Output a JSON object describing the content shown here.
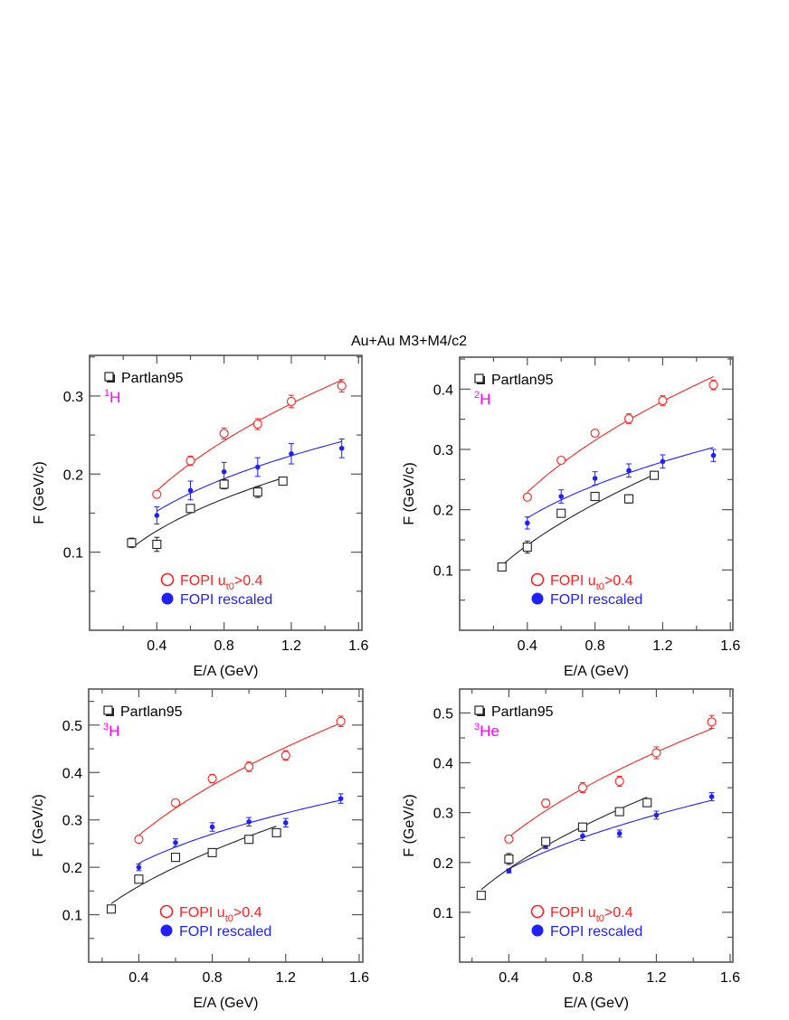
{
  "figure_title": "Au+Au M3+M4/c2",
  "colors": {
    "red": "#ff2020",
    "blue": "#2020ff",
    "black": "#222222",
    "magenta": "#ff00ff",
    "frame": "#555555"
  },
  "legend": {
    "partlan": "Partlan95",
    "fopi_prefix": "FOPI u",
    "fopi_sub": "t0",
    "fopi_suffix": ">0.4",
    "rescaled": "FOPI rescaled"
  },
  "chart_data": [
    {
      "type": "scatter",
      "title": "",
      "isotope_mass": "1",
      "isotope_symbol": "H",
      "xlabel": "E/A (GeV)",
      "ylabel": "F (GeV/c)",
      "xlim": [
        0,
        1.62
      ],
      "ylim": [
        0,
        0.352
      ],
      "xticks": [
        0.4,
        0.8,
        1.2,
        1.6
      ],
      "yticks": [
        0.1,
        0.2,
        0.3
      ],
      "xtick_labels": [
        "0.4",
        "0.8",
        "1.2",
        "1.6"
      ],
      "ytick_labels": [
        "0.1",
        "0.2",
        "0.3"
      ],
      "series": [
        {
          "name": "FOPI ut0>0.4",
          "color": "red",
          "marker": "open-circle",
          "x": [
            0.4,
            0.6,
            0.8,
            1.0,
            1.2,
            1.5
          ],
          "y": [
            0.174,
            0.217,
            0.252,
            0.264,
            0.293,
            0.313
          ],
          "err": [
            0.003,
            0.006,
            0.007,
            0.007,
            0.008,
            0.008
          ]
        },
        {
          "name": "FOPI rescaled",
          "color": "blue",
          "marker": "filled-circle",
          "x": [
            0.4,
            0.6,
            0.8,
            1.0,
            1.2,
            1.5
          ],
          "y": [
            0.147,
            0.179,
            0.203,
            0.209,
            0.226,
            0.233
          ],
          "err": [
            0.011,
            0.012,
            0.012,
            0.012,
            0.013,
            0.012
          ]
        },
        {
          "name": "Partlan95",
          "color": "black",
          "marker": "open-square",
          "x": [
            0.25,
            0.4,
            0.6,
            0.8,
            1.0,
            1.15
          ],
          "y": [
            0.112,
            0.11,
            0.156,
            0.187,
            0.177,
            0.191
          ],
          "err": [
            0.006,
            0.009,
            0.003,
            0.006,
            0.007,
            0.003
          ]
        }
      ]
    },
    {
      "type": "scatter",
      "title": "",
      "isotope_mass": "2",
      "isotope_symbol": "H",
      "xlabel": "E/A (GeV)",
      "ylabel": "F (GeV/c)",
      "xlim": [
        0,
        1.615
      ],
      "ylim": [
        0,
        0.453
      ],
      "xticks": [
        0.4,
        0.8,
        1.2,
        1.6
      ],
      "yticks": [
        0.1,
        0.2,
        0.3,
        0.4
      ],
      "xtick_labels": [
        "0.4",
        "0.8",
        "1.2",
        "1.6"
      ],
      "ytick_labels": [
        "0.1",
        "0.2",
        "0.3",
        "0.4"
      ],
      "series": [
        {
          "name": "FOPI ut0>0.4",
          "color": "red",
          "marker": "open-circle",
          "x": [
            0.4,
            0.6,
            0.8,
            1.0,
            1.2,
            1.5
          ],
          "y": [
            0.221,
            0.282,
            0.327,
            0.351,
            0.381,
            0.407
          ],
          "err": [
            0.003,
            0.004,
            0.004,
            0.008,
            0.008,
            0.008
          ]
        },
        {
          "name": "FOPI rescaled",
          "color": "blue",
          "marker": "filled-circle",
          "x": [
            0.4,
            0.6,
            0.8,
            1.0,
            1.2,
            1.5
          ],
          "y": [
            0.178,
            0.222,
            0.252,
            0.265,
            0.28,
            0.29
          ],
          "err": [
            0.01,
            0.011,
            0.011,
            0.011,
            0.011,
            0.01
          ]
        },
        {
          "name": "Partlan95",
          "color": "black",
          "marker": "open-square",
          "x": [
            0.25,
            0.4,
            0.6,
            0.8,
            1.0,
            1.15
          ],
          "y": [
            0.105,
            0.138,
            0.194,
            0.222,
            0.218,
            0.257
          ],
          "err": [
            0.003,
            0.01,
            0.004,
            0.004,
            0.007,
            0.003
          ]
        }
      ]
    },
    {
      "type": "scatter",
      "title": "",
      "isotope_mass": "3",
      "isotope_symbol": "H",
      "xlabel": "E/A (GeV)",
      "ylabel": "F (GeV/c)",
      "xlim": [
        0.127,
        1.62
      ],
      "ylim": [
        0,
        0.576
      ],
      "xticks": [
        0.4,
        0.8,
        1.2,
        1.6
      ],
      "yticks": [
        0.1,
        0.2,
        0.3,
        0.4,
        0.5
      ],
      "xtick_labels": [
        "0.4",
        "0.8",
        "1.2",
        "1.6"
      ],
      "ytick_labels": [
        "0.1",
        "0.2",
        "0.3",
        "0.4",
        "0.5"
      ],
      "series": [
        {
          "name": "FOPI ut0>0.4",
          "color": "red",
          "marker": "open-circle",
          "x": [
            0.4,
            0.6,
            0.8,
            1.0,
            1.2,
            1.5
          ],
          "y": [
            0.259,
            0.336,
            0.387,
            0.412,
            0.436,
            0.508
          ],
          "err": [
            0.003,
            0.007,
            0.009,
            0.01,
            0.01,
            0.011
          ]
        },
        {
          "name": "FOPI rescaled",
          "color": "blue",
          "marker": "filled-circle",
          "x": [
            0.4,
            0.6,
            0.8,
            1.0,
            1.2,
            1.5
          ],
          "y": [
            0.2,
            0.252,
            0.285,
            0.296,
            0.294,
            0.345
          ],
          "err": [
            0.007,
            0.008,
            0.009,
            0.009,
            0.009,
            0.01
          ]
        },
        {
          "name": "Partlan95",
          "color": "black",
          "marker": "open-square",
          "x": [
            0.25,
            0.4,
            0.6,
            0.8,
            1.0,
            1.15
          ],
          "y": [
            0.112,
            0.175,
            0.221,
            0.231,
            0.259,
            0.273
          ],
          "err": [
            0.003,
            0.007,
            0.004,
            0.003,
            0.006,
            0.003
          ]
        }
      ]
    },
    {
      "type": "scatter",
      "title": "",
      "isotope_mass": "3",
      "isotope_symbol": "He",
      "xlabel": "E/A (GeV)",
      "ylabel": "F (GeV/c)",
      "xlim": [
        0.133,
        1.615
      ],
      "ylim": [
        0,
        0.548
      ],
      "xticks": [
        0.4,
        0.8,
        1.2,
        1.6
      ],
      "yticks": [
        0.1,
        0.2,
        0.3,
        0.4,
        0.5
      ],
      "xtick_labels": [
        "0.4",
        "0.8",
        "1.2",
        "1.6"
      ],
      "ytick_labels": [
        "0.1",
        "0.2",
        "0.3",
        "0.4",
        "0.5"
      ],
      "series": [
        {
          "name": "FOPI ut0>0.4",
          "color": "red",
          "marker": "open-circle",
          "x": [
            0.4,
            0.6,
            0.8,
            1.0,
            1.2,
            1.5
          ],
          "y": [
            0.247,
            0.319,
            0.35,
            0.363,
            0.42,
            0.482
          ],
          "err": [
            0.003,
            0.008,
            0.01,
            0.01,
            0.012,
            0.013
          ]
        },
        {
          "name": "FOPI rescaled",
          "color": "blue",
          "marker": "filled-circle",
          "x": [
            0.4,
            0.6,
            0.8,
            1.0,
            1.2,
            1.5
          ],
          "y": [
            0.183,
            0.233,
            0.253,
            0.258,
            0.295,
            0.332
          ],
          "err": [
            0.004,
            0.005,
            0.009,
            0.007,
            0.008,
            0.008
          ]
        },
        {
          "name": "Partlan95",
          "color": "black",
          "marker": "open-square",
          "x": [
            0.25,
            0.4,
            0.6,
            0.8,
            1.0,
            1.15
          ],
          "y": [
            0.134,
            0.207,
            0.242,
            0.271,
            0.302,
            0.32
          ],
          "err": [
            0.003,
            0.011,
            0.006,
            0.007,
            0.007,
            0.004
          ]
        }
      ]
    }
  ]
}
